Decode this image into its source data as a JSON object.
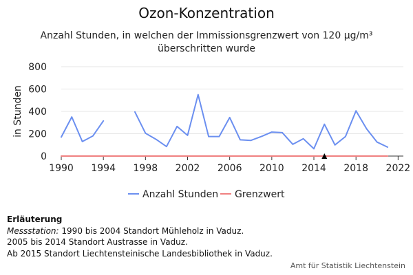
{
  "chart_data": {
    "type": "line",
    "title": "Ozon-Konzentration",
    "subtitle_lines": [
      "Anzahl Stunden, in welchen der Immissionsgrenzwert von 120 µg/m³",
      "überschritten wurde"
    ],
    "ylabel": "in Stunden",
    "xlabel": "",
    "xlim": [
      1990,
      2022.5
    ],
    "ylim": [
      0,
      800
    ],
    "x_ticks": [
      "1990",
      "1994",
      "1998",
      "2002",
      "2006",
      "2010",
      "2014",
      "2018",
      "2022"
    ],
    "y_ticks": [
      "0",
      "200",
      "400",
      "600",
      "800"
    ],
    "grid": "horizontal",
    "legend_position": "bottom",
    "x": [
      1990,
      1991,
      1992,
      1993,
      1994,
      1995,
      1996,
      1997,
      1998,
      1999,
      2000,
      2001,
      2002,
      2003,
      2004,
      2005,
      2006,
      2007,
      2008,
      2009,
      2010,
      2011,
      2012,
      2013,
      2014,
      2015,
      2016,
      2017,
      2018,
      2019,
      2020,
      2021
    ],
    "series": [
      {
        "name": "Anzahl Stunden",
        "color": "#6b8ff0",
        "values": [
          170,
          350,
          130,
          180,
          315,
          null,
          null,
          395,
          205,
          150,
          85,
          265,
          185,
          550,
          175,
          175,
          345,
          145,
          140,
          175,
          215,
          210,
          105,
          155,
          65,
          285,
          100,
          175,
          405,
          245,
          125,
          80
        ]
      },
      {
        "name": "Grenzwert",
        "color": "#f08080",
        "values": [
          0,
          0,
          0,
          0,
          0,
          0,
          0,
          0,
          0,
          0,
          0,
          0,
          0,
          0,
          0,
          0,
          0,
          0,
          0,
          0,
          0,
          0,
          0,
          0,
          0,
          0,
          0,
          0,
          0,
          0,
          0,
          0
        ]
      }
    ],
    "annotations": [
      {
        "marker": "triangle-up",
        "x": 2015,
        "y": 0,
        "color": "#000000"
      }
    ]
  },
  "notes": {
    "heading": "Erläuterung",
    "line1_label": "Messstation:",
    "line1_text": " 1990 bis 2004 Standort Mühleholz in Vaduz.",
    "line2": "2005 bis 2014 Standort Austrasse in Vaduz.",
    "line3": "Ab 2015 Standort Liechtensteinische Landesbibliothek in Vaduz."
  },
  "credit": "Amt für Statistik Liechtenstein"
}
